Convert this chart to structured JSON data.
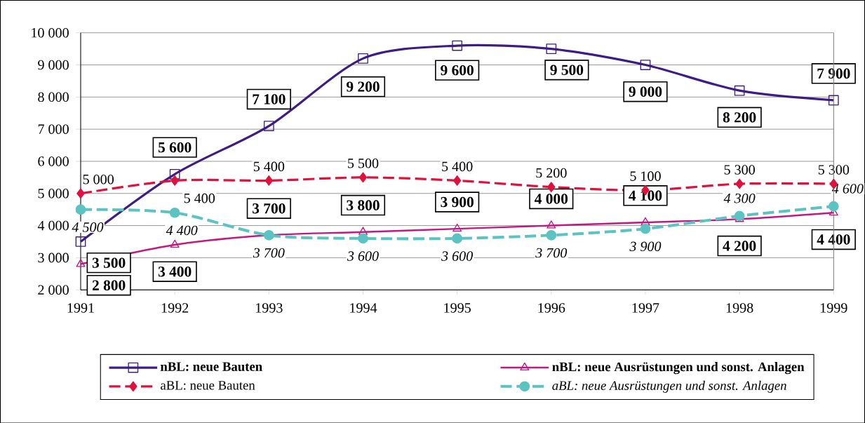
{
  "chart_data": {
    "type": "line",
    "categories": [
      "1991",
      "1992",
      "1993",
      "1994",
      "1995",
      "1996",
      "1997",
      "1998",
      "1999"
    ],
    "series": [
      {
        "name": "nBL: neue Bauten",
        "color": "#3d1c86",
        "marker": "square",
        "line_style": "solid",
        "values": [
          3500,
          5600,
          7100,
          9200,
          9600,
          9500,
          9000,
          8200,
          7900
        ],
        "value_labels": [
          "3 500",
          "5 600",
          "7 100",
          "9 200",
          "9 600",
          "9 500",
          "9 000",
          "8 200",
          "7 900"
        ]
      },
      {
        "name": "nBL: neue Ausrüstungen und sonst. Anlagen",
        "color": "#c4177f",
        "marker": "triangle",
        "line_style": "solid",
        "values": [
          2800,
          3400,
          3700,
          3800,
          3900,
          4000,
          4100,
          4200,
          4400
        ],
        "value_labels": [
          "2 800",
          "3 400",
          "3 700",
          "3 800",
          "3 900",
          "4 000",
          "4 100",
          "4 200",
          "4 400"
        ]
      },
      {
        "name": "aBL: neue Bauten",
        "color": "#e2103c",
        "marker": "diamond",
        "line_style": "dashed",
        "values": [
          5000,
          5400,
          5400,
          5500,
          5400,
          5200,
          5100,
          5300,
          5300
        ],
        "value_labels": [
          "5 000",
          "5 400",
          "5 400",
          "5 500",
          "5 400",
          "5 200",
          "5 100",
          "5 300",
          "5 300"
        ]
      },
      {
        "name": "aBL: neue Ausrüstungen und sonst. Anlagen",
        "color": "#5cc3c3",
        "marker": "circle",
        "line_style": "dashed",
        "values": [
          4500,
          4400,
          3700,
          3600,
          3600,
          3700,
          3900,
          4300,
          4600
        ],
        "value_labels": [
          "4 500",
          "4 400",
          "3 700",
          "3 600",
          "3 600",
          "3 700",
          "3 900",
          "4 300",
          "4 600"
        ]
      }
    ],
    "ylim": [
      2000,
      10000
    ],
    "yticks": [
      {
        "value": 2000,
        "label": "2 000"
      },
      {
        "value": 3000,
        "label": "3 000"
      },
      {
        "value": 4000,
        "label": "4 000"
      },
      {
        "value": 5000,
        "label": "5 000"
      },
      {
        "value": 6000,
        "label": "6 000"
      },
      {
        "value": 7000,
        "label": "7 000"
      },
      {
        "value": 8000,
        "label": "8 000"
      },
      {
        "value": 9000,
        "label": "9 000"
      },
      {
        "value": 10000,
        "label": "10 000"
      }
    ],
    "grid": "y",
    "legend": "bottom"
  }
}
